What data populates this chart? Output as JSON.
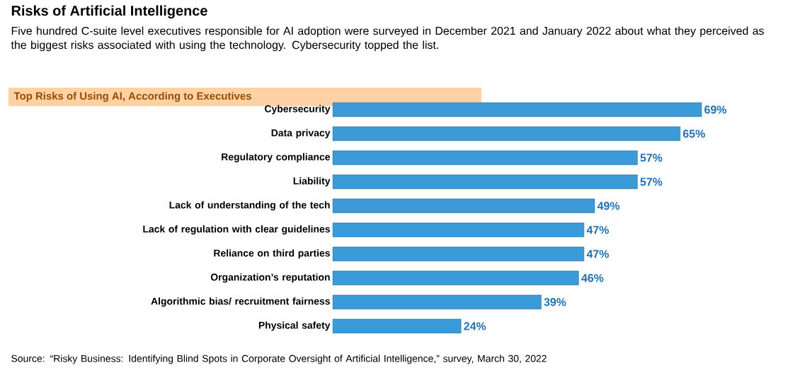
{
  "chart_data": {
    "type": "bar",
    "orientation": "horizontal",
    "title": "Risks of Artificial Intelligence",
    "subtitle": "Five hundred C-suite level executives responsible for AI adoption were surveyed in December 2021 and January 2022 about what they perceived as the biggest risks associated with using the technology. Cybersecurity topped the list.",
    "categories": [
      "Cybersecurity",
      "Data privacy",
      "Regulatory compliance",
      "Liability",
      "Lack of understanding of the tech",
      "Lack of regulation with clear guidelines",
      "Reliance on third parties",
      "Organization’s reputation",
      "Algorithmic bias/ recruitment fairness",
      "Physical safety"
    ],
    "values": [
      69,
      65,
      57,
      57,
      49,
      47,
      47,
      46,
      39,
      24
    ],
    "value_labels": [
      "69%",
      "65%",
      "57%",
      "57%",
      "49%",
      "47%",
      "47%",
      "46%",
      "39%",
      "24%"
    ],
    "color": "#3b9ad8",
    "annotations": [
      "Top Risks of Using AI, According to Executives",
      "Source: “Risky Business: Identifying Blind Spots in Corporate Oversight of Artificial Intelligence,” survey, March 30, 2022"
    ]
  }
}
